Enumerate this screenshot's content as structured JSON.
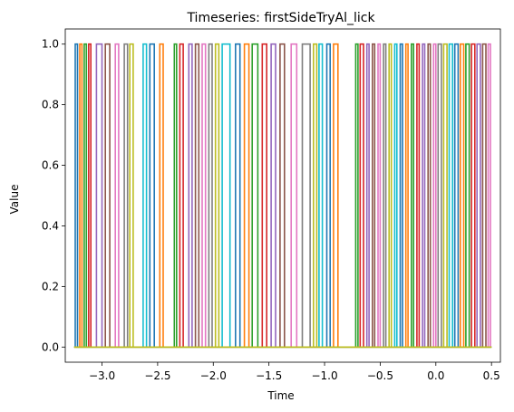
{
  "chart_data": {
    "type": "line",
    "title": "Timeseries: firstSideTryAl_lick",
    "xlabel": "Time",
    "ylabel": "Value",
    "xlim": [
      -3.33,
      0.58
    ],
    "ylim": [
      -0.05,
      1.05
    ],
    "xticks": [
      -3.0,
      -2.5,
      -2.0,
      -1.5,
      -1.0,
      -0.5,
      0.0,
      0.5
    ],
    "xtick_labels": [
      "−3.0",
      "−2.5",
      "−2.0",
      "−1.5",
      "−1.0",
      "−0.5",
      "0.0",
      "0.5"
    ],
    "yticks": [
      0.0,
      0.2,
      0.4,
      0.6,
      0.8,
      1.0
    ],
    "ytick_labels": [
      "0.0",
      "0.2",
      "0.4",
      "0.6",
      "0.8",
      "1.0"
    ],
    "grid": false,
    "legend": "none",
    "baseline": {
      "x_start": -3.25,
      "x_end": 0.5,
      "value": 0
    },
    "palette": [
      "#1f77b4",
      "#ff7f0e",
      "#2ca02c",
      "#d62728",
      "#9467bd",
      "#8c564b",
      "#e377c2",
      "#7f7f7f",
      "#bcbd22",
      "#17becf"
    ],
    "pulse_edges": [
      -3.24,
      -3.22,
      -3.2,
      -3.18,
      -3.16,
      -3.14,
      -3.12,
      -3.1,
      -3.05,
      -3.0,
      -2.97,
      -2.93,
      -2.88,
      -2.85,
      -2.8,
      -2.77,
      -2.75,
      -2.72,
      -2.63,
      -2.6,
      -2.57,
      -2.53,
      -2.48,
      -2.45,
      -2.35,
      -2.33,
      -2.3,
      -2.27,
      -2.22,
      -2.19,
      -2.16,
      -2.13,
      -2.1,
      -2.07,
      -2.04,
      -2.01,
      -1.98,
      -1.95,
      -1.92,
      -1.85,
      -1.8,
      -1.76,
      -1.72,
      -1.68,
      -1.65,
      -1.6,
      -1.56,
      -1.52,
      -1.48,
      -1.44,
      -1.4,
      -1.36,
      -1.3,
      -1.25,
      -1.2,
      -1.13,
      -1.1,
      -1.07,
      -1.05,
      -1.02,
      -0.98,
      -0.95,
      -0.92,
      -0.88,
      -0.72,
      -0.7,
      -0.68,
      -0.65,
      -0.62,
      -0.6,
      -0.57,
      -0.55,
      -0.52,
      -0.5,
      -0.47,
      -0.45,
      -0.42,
      -0.4,
      -0.37,
      -0.35,
      -0.32,
      -0.3,
      -0.27,
      -0.25,
      -0.22,
      -0.2,
      -0.17,
      -0.15,
      -0.12,
      -0.1,
      -0.07,
      -0.05,
      -0.02,
      0.0,
      0.02,
      0.05,
      0.07,
      0.1,
      0.12,
      0.15,
      0.17,
      0.2,
      0.22,
      0.25,
      0.27,
      0.3,
      0.32,
      0.35,
      0.37,
      0.4,
      0.42,
      0.45,
      0.47,
      0.49
    ]
  }
}
